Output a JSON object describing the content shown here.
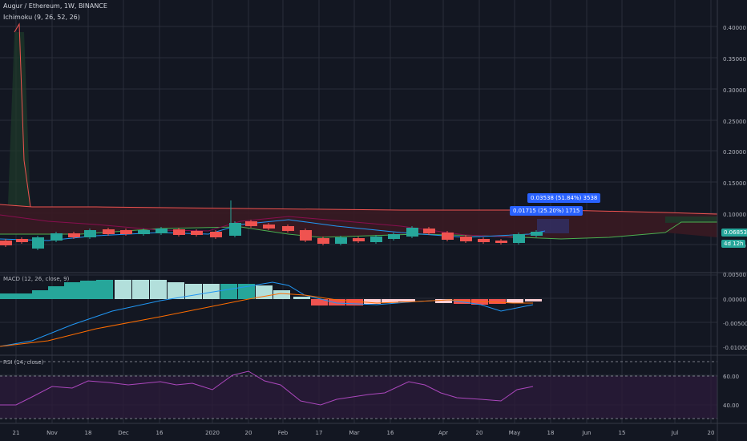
{
  "header": {
    "symbol_line": "Augur / Ethereum, 1W, BINANCE",
    "indicator_line": "Ichimoku (9, 26, 52, 26)"
  },
  "price_axis": [
    "0.40000",
    "0.35000",
    "0.30000",
    "0.25000",
    "0.20000",
    "0.15000",
    "0.10000",
    "0.05000"
  ],
  "price_tags": {
    "last_price": "0.06853",
    "timer": "4d 12h",
    "colors": {
      "last": "#26a69a",
      "timer": "#26a69a"
    }
  },
  "measure_tooltips": [
    "0.03538 (51.84%) 3538",
    "0.01715 (25.20%) 1715"
  ],
  "macd": {
    "title": "MACD (12, 26, close, 9)",
    "axis": [
      "0.00500",
      "0.00000",
      "-0.00500",
      "-0.01000"
    ]
  },
  "rsi": {
    "title": "RSI (14, close)",
    "axis": [
      "60.00",
      "40.00"
    ]
  },
  "time_axis": [
    "21",
    "Nov",
    "18",
    "Dec",
    "16",
    "2020",
    "20",
    "Feb",
    "17",
    "Mar",
    "16",
    "Apr",
    "20",
    "May",
    "18",
    "Jun",
    "15",
    "Jul",
    "20"
  ],
  "colors": {
    "background": "#131722",
    "up": "#26a69a",
    "up_light": "#b2dfdb",
    "down": "#ef5350",
    "down_light": "#ffcdd2",
    "grid": "#363a45",
    "macd_line": "#2196f3",
    "signal_line": "#ff6d00",
    "rsi_line": "#ab47bc",
    "cloud_red": "#5b1f26",
    "cloud_green": "#1e3a2a"
  }
}
